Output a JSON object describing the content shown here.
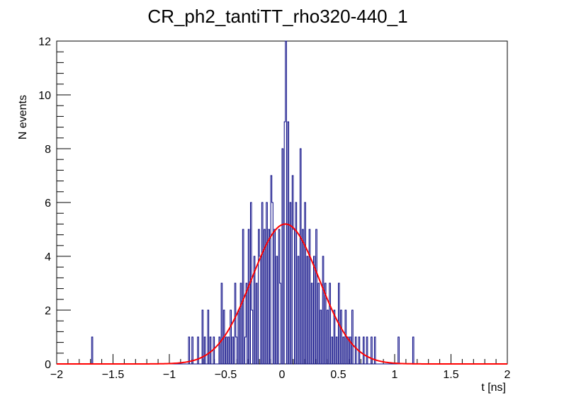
{
  "chart_data": {
    "type": "histogram",
    "title": "CR_ph2_tantiTT_rho320-440_1",
    "xlabel": "t [ns]",
    "ylabel": "N events",
    "xlim": [
      -2,
      2
    ],
    "ylim": [
      0,
      12
    ],
    "x_ticks": [
      "−2",
      "−1.5",
      "−1",
      "−0.5",
      "0",
      "0.5",
      "1",
      "1.5",
      "2"
    ],
    "x_tick_values": [
      -2,
      -1.5,
      -1,
      -0.5,
      0,
      0.5,
      1,
      1.5,
      2
    ],
    "y_ticks": [
      "0",
      "2",
      "4",
      "6",
      "8",
      "10",
      "12"
    ],
    "y_tick_values": [
      0,
      2,
      4,
      6,
      8,
      10,
      12
    ],
    "histogram": {
      "name": "data",
      "color": "#000080",
      "bin_width": 0.01,
      "bins": [
        [
          -1.69,
          1
        ],
        [
          -0.83,
          1
        ],
        [
          -0.8,
          1
        ],
        [
          -0.75,
          1
        ],
        [
          -0.71,
          2
        ],
        [
          -0.69,
          1
        ],
        [
          -0.66,
          2
        ],
        [
          -0.64,
          1
        ],
        [
          -0.61,
          1
        ],
        [
          -0.56,
          1
        ],
        [
          -0.54,
          3
        ],
        [
          -0.52,
          2
        ],
        [
          -0.5,
          1
        ],
        [
          -0.48,
          1
        ],
        [
          -0.46,
          2
        ],
        [
          -0.44,
          1
        ],
        [
          -0.42,
          3
        ],
        [
          -0.41,
          1
        ],
        [
          -0.39,
          2
        ],
        [
          -0.37,
          3
        ],
        [
          -0.35,
          5
        ],
        [
          -0.33,
          1
        ],
        [
          -0.32,
          3
        ],
        [
          -0.3,
          5
        ],
        [
          -0.28,
          6
        ],
        [
          -0.27,
          2
        ],
        [
          -0.25,
          4
        ],
        [
          -0.23,
          3
        ],
        [
          -0.21,
          5
        ],
        [
          -0.2,
          4
        ],
        [
          -0.18,
          6
        ],
        [
          -0.16,
          5
        ],
        [
          -0.14,
          6
        ],
        [
          -0.12,
          5
        ],
        [
          -0.1,
          7
        ],
        [
          -0.09,
          6
        ],
        [
          -0.07,
          5
        ],
        [
          -0.05,
          4
        ],
        [
          -0.03,
          5
        ],
        [
          -0.02,
          3
        ],
        [
          0.0,
          8
        ],
        [
          0.02,
          9
        ],
        [
          0.03,
          12
        ],
        [
          0.05,
          9
        ],
        [
          0.07,
          6
        ],
        [
          0.09,
          7
        ],
        [
          0.1,
          5
        ],
        [
          0.12,
          6
        ],
        [
          0.14,
          4
        ],
        [
          0.16,
          8
        ],
        [
          0.18,
          5
        ],
        [
          0.2,
          6
        ],
        [
          0.22,
          4
        ],
        [
          0.24,
          5
        ],
        [
          0.26,
          3
        ],
        [
          0.28,
          4
        ],
        [
          0.3,
          5
        ],
        [
          0.32,
          3
        ],
        [
          0.34,
          2
        ],
        [
          0.36,
          4
        ],
        [
          0.38,
          3
        ],
        [
          0.4,
          2
        ],
        [
          0.42,
          3
        ],
        [
          0.44,
          1
        ],
        [
          0.46,
          2
        ],
        [
          0.48,
          1
        ],
        [
          0.5,
          3
        ],
        [
          0.52,
          2
        ],
        [
          0.54,
          1
        ],
        [
          0.56,
          2
        ],
        [
          0.58,
          1
        ],
        [
          0.6,
          1
        ],
        [
          0.62,
          2
        ],
        [
          0.65,
          1
        ],
        [
          0.68,
          1
        ],
        [
          0.72,
          1
        ],
        [
          0.75,
          1
        ],
        [
          0.79,
          1
        ],
        [
          0.82,
          1
        ],
        [
          1.03,
          1
        ],
        [
          1.16,
          1
        ]
      ]
    },
    "fit": {
      "name": "gaussian fit",
      "color": "#ff0000",
      "function": "gaussian",
      "amplitude": 5.2,
      "mean": 0.03,
      "sigma": 0.3
    },
    "grid": false,
    "legend": "none"
  }
}
